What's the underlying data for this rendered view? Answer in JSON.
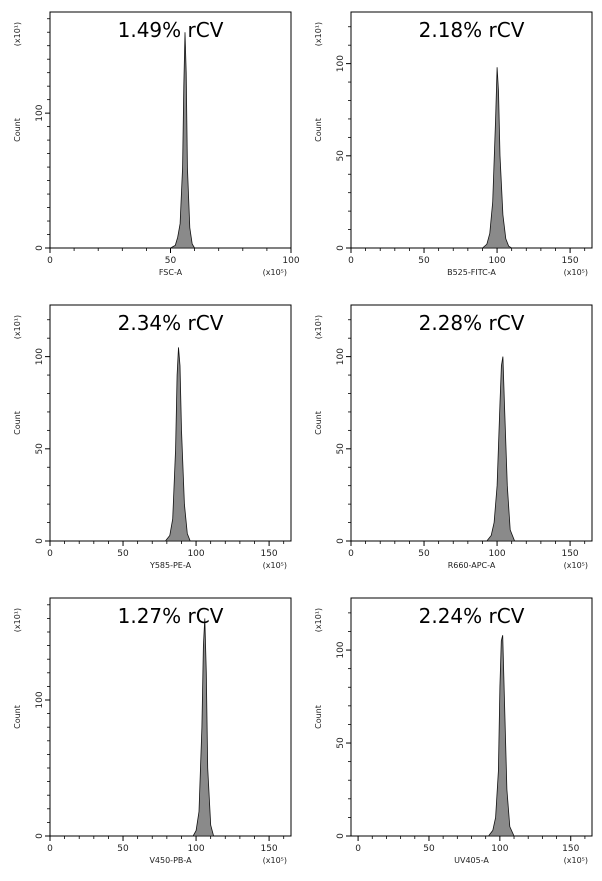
{
  "chart_data": [
    {
      "type": "area",
      "annotation": "1.49% rCV",
      "xlabel": "FSC-A",
      "x_unit": "(x10⁵)",
      "ylabel": "Count",
      "y_unit": "(x10¹)",
      "xlim": [
        0,
        100
      ],
      "xticks": [
        0,
        50,
        100
      ],
      "ylim": [
        0,
        175
      ],
      "yticks": [
        0,
        100
      ],
      "series": [
        {
          "x": [
            50,
            52,
            53,
            54,
            55,
            55.5,
            56,
            56.5,
            57,
            58,
            59,
            60
          ],
          "values": [
            0,
            2,
            8,
            18,
            60,
            120,
            160,
            130,
            60,
            15,
            3,
            0
          ]
        }
      ]
    },
    {
      "type": "area",
      "annotation": "2.18% rCV",
      "xlabel": "B525-FITC-A",
      "x_unit": "(x10⁵)",
      "ylabel": "Count",
      "y_unit": "(x10¹)",
      "xlim": [
        0,
        165
      ],
      "xticks": [
        0,
        50,
        100,
        150
      ],
      "ylim": [
        0,
        128
      ],
      "yticks": [
        0,
        50,
        100
      ],
      "series": [
        {
          "x": [
            90,
            93,
            95,
            97,
            99,
            100,
            101,
            102,
            104,
            106,
            108,
            110
          ],
          "values": [
            0,
            2,
            8,
            25,
            70,
            98,
            85,
            50,
            18,
            5,
            1,
            0
          ]
        }
      ]
    },
    {
      "type": "area",
      "annotation": "2.34% rCV",
      "xlabel": "Y585-PE-A",
      "x_unit": "(x10⁵)",
      "ylabel": "Count",
      "y_unit": "(x10¹)",
      "xlim": [
        0,
        165
      ],
      "xticks": [
        0,
        50,
        100,
        150
      ],
      "ylim": [
        0,
        128
      ],
      "yticks": [
        0,
        50,
        100
      ],
      "series": [
        {
          "x": [
            79,
            82,
            84,
            86,
            87,
            88,
            89,
            90,
            92,
            94,
            96
          ],
          "values": [
            0,
            3,
            12,
            50,
            90,
            105,
            95,
            60,
            20,
            4,
            0
          ]
        }
      ]
    },
    {
      "type": "area",
      "annotation": "2.28% rCV",
      "xlabel": "R660-APC-A",
      "x_unit": "(x10⁵)",
      "ylabel": "Count",
      "y_unit": "(x10¹)",
      "xlim": [
        0,
        165
      ],
      "xticks": [
        0,
        50,
        100,
        150
      ],
      "ylim": [
        0,
        128
      ],
      "yticks": [
        0,
        50,
        100
      ],
      "series": [
        {
          "x": [
            93,
            96,
            98,
            100,
            102,
            103,
            104,
            105,
            107,
            109,
            112
          ],
          "values": [
            0,
            3,
            10,
            30,
            75,
            95,
            100,
            75,
            30,
            6,
            0
          ]
        }
      ]
    },
    {
      "type": "area",
      "annotation": "1.27% rCV",
      "xlabel": "V450-PB-A",
      "x_unit": "(x10⁵)",
      "ylabel": "Count",
      "y_unit": "(x10¹)",
      "xlim": [
        0,
        165
      ],
      "xticks": [
        0,
        50,
        100,
        150
      ],
      "ylim": [
        0,
        175
      ],
      "yticks": [
        0,
        100
      ],
      "series": [
        {
          "x": [
            98,
            100,
            102,
            104,
            105,
            106,
            107,
            108,
            110,
            112
          ],
          "values": [
            0,
            4,
            18,
            80,
            140,
            160,
            120,
            50,
            8,
            0
          ]
        }
      ]
    },
    {
      "type": "area",
      "annotation": "2.24% rCV",
      "xlabel": "UV405-A",
      "x_unit": "(x10⁵)",
      "ylabel": "Count",
      "y_unit": "(x10¹)",
      "xlim": [
        -5,
        165
      ],
      "xticks": [
        0,
        50,
        100,
        150
      ],
      "ylim": [
        0,
        128
      ],
      "yticks": [
        0,
        50,
        100
      ],
      "series": [
        {
          "x": [
            92,
            95,
            97,
            99,
            100,
            101,
            102,
            103,
            105,
            107,
            110
          ],
          "values": [
            0,
            3,
            10,
            35,
            80,
            105,
            108,
            80,
            25,
            5,
            0
          ]
        }
      ]
    }
  ]
}
